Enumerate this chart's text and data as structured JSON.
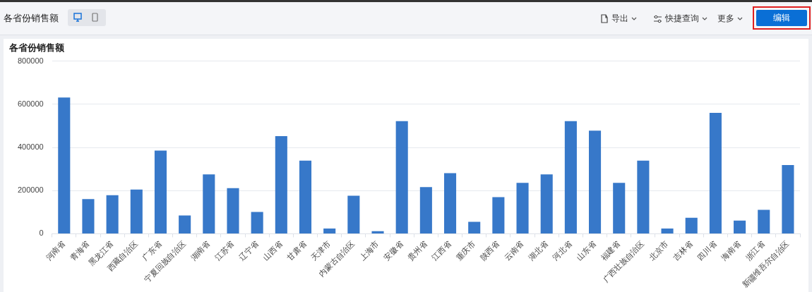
{
  "chart_data": {
    "type": "bar",
    "title": "各省份销售额",
    "annotations": [
      "各省份销售额",
      "导出",
      "快捷查询",
      "更多",
      "编辑"
    ],
    "categories": [
      "河南省",
      "青海省",
      "黑龙江省",
      "西藏自治区",
      "广东省",
      "宁夏回族自治区",
      "湖南省",
      "江苏省",
      "辽宁省",
      "山西省",
      "甘肃省",
      "天津市",
      "内蒙古自治区",
      "上海市",
      "安徽省",
      "贵州省",
      "江西省",
      "重庆市",
      "陕西省",
      "云南省",
      "湖北省",
      "河北省",
      "山东省",
      "福建省",
      "广西壮族自治区",
      "北京市",
      "吉林省",
      "四川省",
      "海南省",
      "浙江省",
      "新疆维吾尔自治区"
    ],
    "values": [
      631000,
      161000,
      179000,
      205000,
      385000,
      85000,
      275000,
      211000,
      101000,
      452000,
      339000,
      24000,
      176000,
      12000,
      522000,
      216000,
      281000,
      55000,
      170000,
      236000,
      275000,
      522000,
      478000,
      236000,
      339000,
      24000,
      74000,
      560000,
      61000,
      111000,
      318000
    ],
    "color": "#3778c9",
    "ylim": [
      0,
      800000
    ],
    "yticks": [
      0,
      200000,
      400000,
      600000,
      800000
    ],
    "grid": "y"
  }
}
